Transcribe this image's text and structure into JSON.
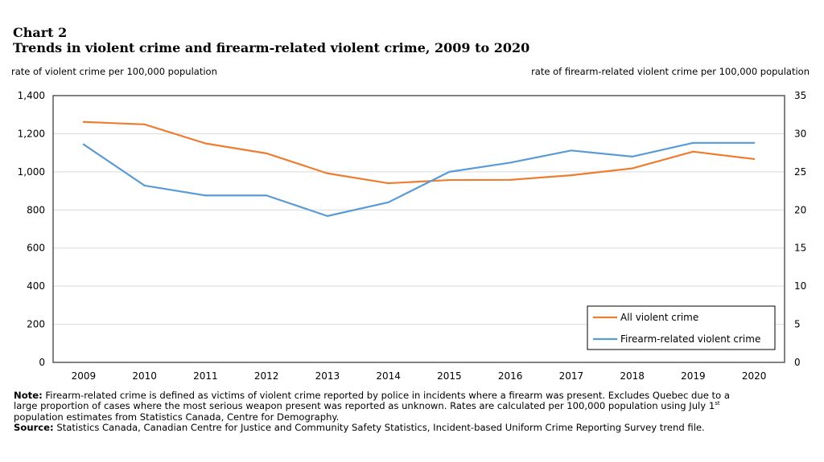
{
  "header": {
    "chart_number": "Chart 2",
    "title": "Trends in violent crime and firearm-related violent crime, 2009 to 2020"
  },
  "chart_data": {
    "type": "line",
    "title": "Trends in violent crime and firearm-related violent crime, 2009 to 2020",
    "ylabel": "rate of violent crime per 100,000 population",
    "y2label": "rate of firearm-related violent crime per 100,000 population",
    "ylim": [
      0,
      1400
    ],
    "y2lim": [
      0,
      35
    ],
    "yticks": [
      "0",
      "200",
      "400",
      "600",
      "800",
      "1,000",
      "1,200",
      "1,400"
    ],
    "y2ticks": [
      "0",
      "5",
      "10",
      "15",
      "20",
      "25",
      "30",
      "35"
    ],
    "categories": [
      "2009",
      "2010",
      "2011",
      "2012",
      "2013",
      "2014",
      "2015",
      "2016",
      "2017",
      "2018",
      "2019",
      "2020"
    ],
    "grid": true,
    "legend_position": "bottom-right",
    "series": [
      {
        "name": "All violent crime",
        "axis": "left",
        "color": "#ED7D31",
        "values": [
          1262,
          1249,
          1149,
          1097,
          992,
          940,
          957,
          958,
          982,
          1018,
          1106,
          1067
        ]
      },
      {
        "name": "Firearm-related violent crime",
        "axis": "right",
        "color": "#5B9BD5",
        "values": [
          28.6,
          23.2,
          21.9,
          21.9,
          19.2,
          21.0,
          25.0,
          26.2,
          27.8,
          27.0,
          28.8,
          28.8
        ]
      }
    ]
  },
  "footer": {
    "note_label": "Note:",
    "note_line1": " Firearm-related crime is defined as victims of violent crime reported by police in incidents where a firearm was present. Excludes Quebec due to a",
    "note_line2": "large proportion of cases where the most serious weapon present was reported as unknown. Rates are calculated per 100,000 population using July 1",
    "note_sup": "st",
    "note_line3": "population estimates from Statistics Canada, Centre for Demography.",
    "source_label": "Source:",
    "source_text": " Statistics Canada, Canadian Centre for Justice and Community Safety Statistics, Incident-based Uniform Crime Reporting Survey trend file."
  }
}
